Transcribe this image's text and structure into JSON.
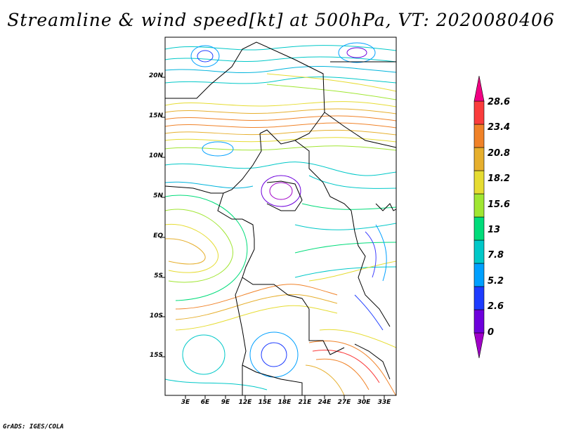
{
  "title": "Streamline & wind speed[kt] at 500hPa, VT: 2020080406",
  "credit": "GrADS: IGES/COLA",
  "lat_labels": [
    "20N",
    "15N",
    "10N",
    "5N",
    "EQ",
    "5S",
    "10S",
    "15S"
  ],
  "lon_labels": [
    "3E",
    "6E",
    "9E",
    "12E",
    "15E",
    "18E",
    "21E",
    "24E",
    "27E",
    "30E",
    "33E"
  ],
  "colorbar": {
    "labels": [
      "0",
      "2.6",
      "5.2",
      "7.8",
      "13",
      "15.6",
      "18.2",
      "20.8",
      "23.4",
      "28.6"
    ],
    "colors": [
      "#a000c8",
      "#6e00dc",
      "#1e3cff",
      "#00a0ff",
      "#00c8c8",
      "#00dc7a",
      "#a0e632",
      "#e6dc32",
      "#e6af2d",
      "#f08228",
      "#fa3c3c",
      "#f00082"
    ]
  },
  "map_colors": {
    "border": "#000000",
    "stream_calm": "#4040ff",
    "stream_moderate": "#00c8c8",
    "stream_strong": "#f0a000"
  }
}
